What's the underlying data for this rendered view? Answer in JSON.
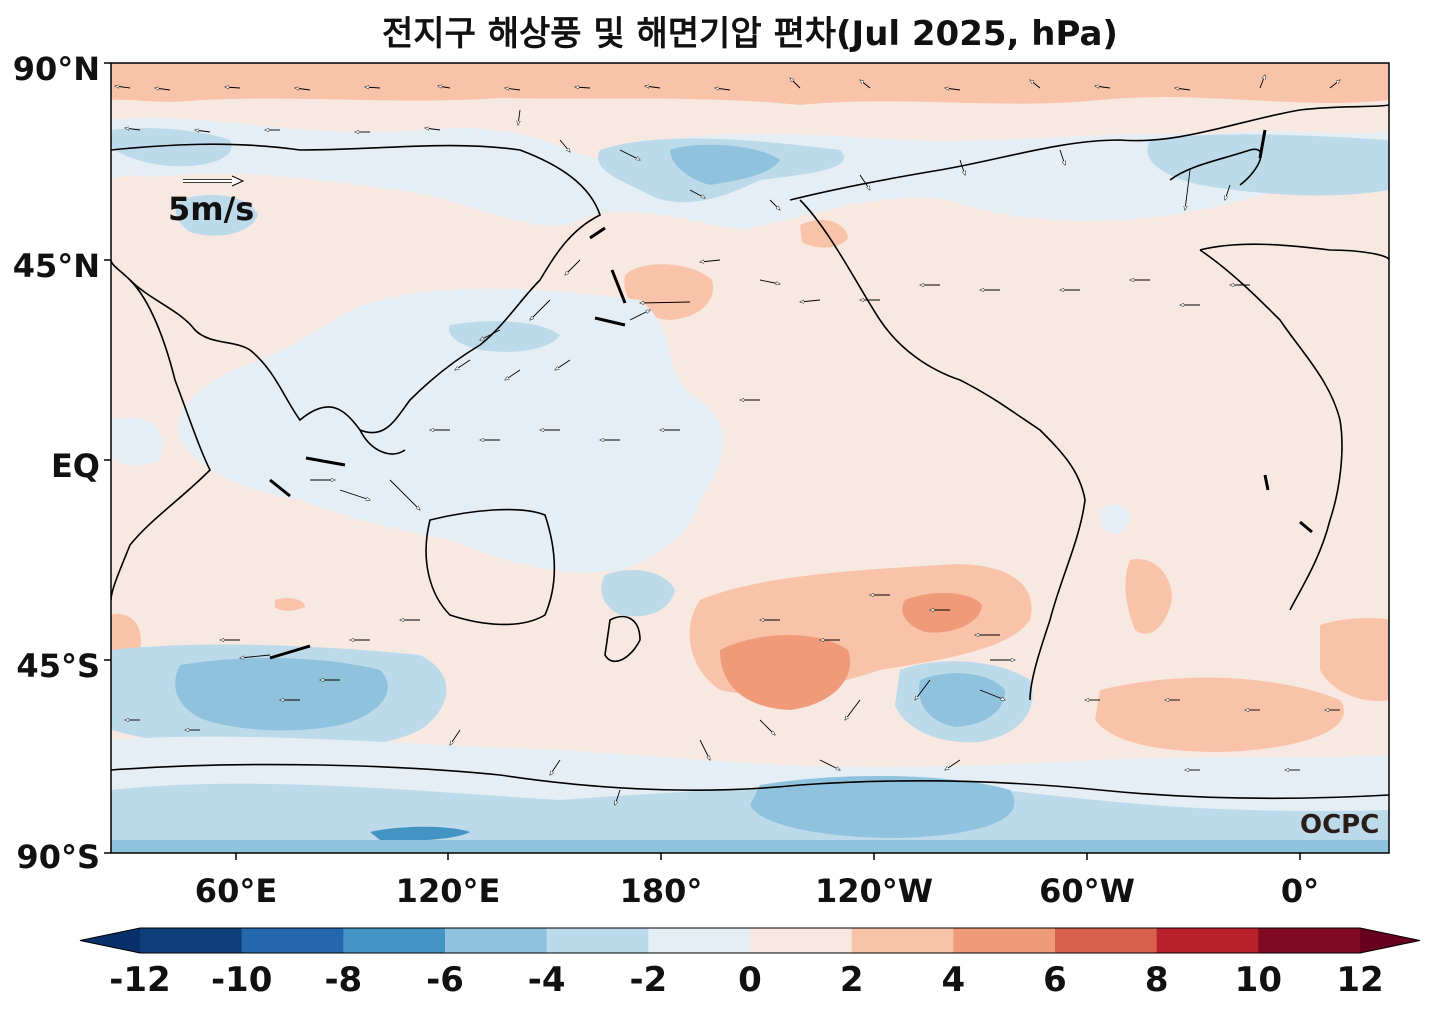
{
  "title": "전지구 해상풍 및 해면기압 편차(Jul 2025, hPa)",
  "lat_labels": [
    "90°N",
    "45°N",
    "EQ",
    "45°S",
    "90°S"
  ],
  "lon_labels": [
    "60°E",
    "120°E",
    "180°",
    "120°W",
    "60°W",
    "0°"
  ],
  "colorbar": {
    "ticks": [
      "-12",
      "-10",
      "-8",
      "-6",
      "-4",
      "-2",
      "0",
      "2",
      "4",
      "6",
      "8",
      "10",
      "12"
    ],
    "colors": [
      "#0e3f7a",
      "#2567ad",
      "#4393c3",
      "#8fc2dd",
      "#bcdaea",
      "#e5eef4",
      "#f7e9e2",
      "#f9c3a9",
      "#ef9b7a",
      "#d7604d",
      "#b8202b",
      "#7f0a22"
    ],
    "extend_low": "#08306b",
    "extend_high": "#67001f"
  },
  "reference_vector_label": "5m/s",
  "credit": "OCPC"
}
